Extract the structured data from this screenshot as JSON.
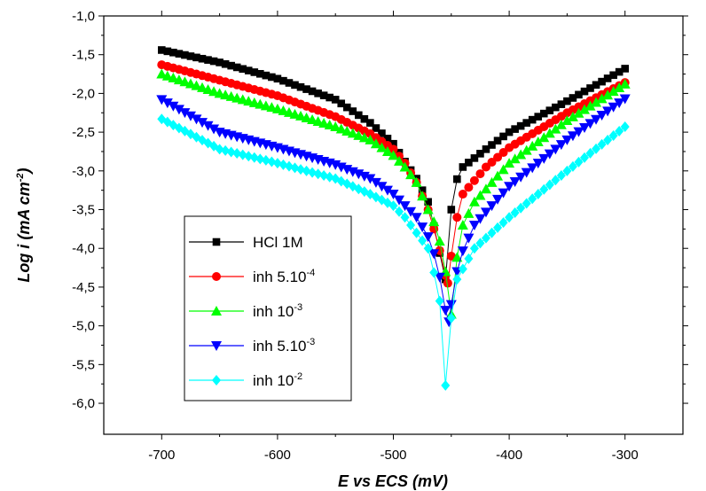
{
  "chart_data": {
    "type": "scatter",
    "xlabel": "E vs ECS (mV)",
    "ylabel": "Log i (mA cm",
    "ylabel_sup": "-2",
    "ylabel_end": ")",
    "xlim": [
      -750,
      -250
    ],
    "ylim": [
      -6.4,
      -1.0
    ],
    "xticks": [
      -700,
      -600,
      -500,
      -400,
      -300
    ],
    "yticks": [
      -1.0,
      -1.5,
      -2.0,
      -2.5,
      -3.0,
      -3.5,
      -4.0,
      -4.5,
      -5.0,
      -5.5,
      -6.0
    ],
    "xtick_labels": [
      "-700",
      "-600",
      "-500",
      "-400",
      "-300"
    ],
    "ytick_labels": [
      "-1,0",
      "-1,5",
      "-2,0",
      "-2,5",
      "-3,0",
      "-3,5",
      "-4,0",
      "-4,5",
      "-5,0",
      "-5,5",
      "-6,0"
    ],
    "legend_position": "bottom-left",
    "series": [
      {
        "name": "HCl 1M",
        "name_sup": "",
        "color": "#000000",
        "marker": "square",
        "x_start": -700,
        "x_end": -300,
        "x_step": 5,
        "ecorr": -455,
        "min_log_i": -4.4,
        "cathodic": [
          [
            -700,
            -1.44
          ],
          [
            -650,
            -1.6
          ],
          [
            -600,
            -1.81
          ],
          [
            -550,
            -2.08
          ],
          [
            -520,
            -2.38
          ],
          [
            -500,
            -2.65
          ],
          [
            -490,
            -2.88
          ],
          [
            -480,
            -3.1
          ],
          [
            -470,
            -3.4
          ],
          [
            -462,
            -3.9
          ],
          [
            -457,
            -4.3
          ],
          [
            -455,
            -4.4
          ]
        ],
        "anodic": [
          [
            -455,
            -4.4
          ],
          [
            -452,
            -3.8
          ],
          [
            -448,
            -3.2
          ],
          [
            -440,
            -2.95
          ],
          [
            -420,
            -2.72
          ],
          [
            -400,
            -2.5
          ],
          [
            -350,
            -2.1
          ],
          [
            -300,
            -1.68
          ]
        ]
      },
      {
        "name": "inh 5.10",
        "name_sup": "-4",
        "color": "#ff0000",
        "marker": "circle",
        "x_start": -700,
        "x_end": -300,
        "x_step": 5,
        "ecorr": -453,
        "min_log_i": -4.45,
        "cathodic": [
          [
            -700,
            -1.63
          ],
          [
            -650,
            -1.83
          ],
          [
            -600,
            -2.03
          ],
          [
            -550,
            -2.3
          ],
          [
            -520,
            -2.52
          ],
          [
            -500,
            -2.72
          ],
          [
            -490,
            -2.9
          ],
          [
            -480,
            -3.15
          ],
          [
            -470,
            -3.5
          ],
          [
            -462,
            -3.9
          ],
          [
            -455,
            -4.35
          ],
          [
            -453,
            -4.45
          ]
        ],
        "anodic": [
          [
            -453,
            -4.45
          ],
          [
            -450,
            -4.1
          ],
          [
            -445,
            -3.6
          ],
          [
            -440,
            -3.3
          ],
          [
            -420,
            -2.95
          ],
          [
            -400,
            -2.7
          ],
          [
            -350,
            -2.25
          ],
          [
            -300,
            -1.86
          ]
        ]
      },
      {
        "name": "inh 10",
        "name_sup": "-3",
        "color": "#00ff00",
        "marker": "triangle-up",
        "x_start": -700,
        "x_end": -300,
        "x_step": 5,
        "ecorr": -450,
        "min_log_i": -4.85,
        "cathodic": [
          [
            -700,
            -1.75
          ],
          [
            -650,
            -2.0
          ],
          [
            -600,
            -2.2
          ],
          [
            -550,
            -2.43
          ],
          [
            -520,
            -2.6
          ],
          [
            -500,
            -2.8
          ],
          [
            -490,
            -2.95
          ],
          [
            -480,
            -3.15
          ],
          [
            -470,
            -3.5
          ],
          [
            -462,
            -3.75
          ],
          [
            -455,
            -4.3
          ],
          [
            -450,
            -4.85
          ]
        ],
        "anodic": [
          [
            -450,
            -4.85
          ],
          [
            -446,
            -4.2
          ],
          [
            -440,
            -3.7
          ],
          [
            -430,
            -3.4
          ],
          [
            -400,
            -2.9
          ],
          [
            -350,
            -2.35
          ],
          [
            -300,
            -1.88
          ]
        ]
      },
      {
        "name": "inh 5.10",
        "name_sup": "-3",
        "color": "#0000ff",
        "marker": "triangle-down",
        "x_start": -700,
        "x_end": -300,
        "x_step": 5,
        "ecorr": -452,
        "min_log_i": -4.95,
        "cathodic": [
          [
            -700,
            -2.08
          ],
          [
            -650,
            -2.5
          ],
          [
            -600,
            -2.7
          ],
          [
            -550,
            -2.92
          ],
          [
            -520,
            -3.1
          ],
          [
            -500,
            -3.3
          ],
          [
            -490,
            -3.45
          ],
          [
            -480,
            -3.6
          ],
          [
            -470,
            -3.85
          ],
          [
            -462,
            -4.2
          ],
          [
            -455,
            -4.8
          ],
          [
            -452,
            -4.95
          ]
        ],
        "anodic": [
          [
            -452,
            -4.95
          ],
          [
            -448,
            -4.5
          ],
          [
            -442,
            -4.1
          ],
          [
            -430,
            -3.7
          ],
          [
            -400,
            -3.2
          ],
          [
            -350,
            -2.6
          ],
          [
            -300,
            -2.07
          ]
        ]
      },
      {
        "name": "inh 10",
        "name_sup": "-2",
        "color": "#00ffff",
        "marker": "diamond",
        "x_start": -700,
        "x_end": -300,
        "x_step": 5,
        "ecorr": -455,
        "min_log_i": -5.77,
        "cathodic": [
          [
            -700,
            -2.33
          ],
          [
            -650,
            -2.72
          ],
          [
            -600,
            -2.9
          ],
          [
            -550,
            -3.1
          ],
          [
            -520,
            -3.3
          ],
          [
            -500,
            -3.45
          ],
          [
            -490,
            -3.6
          ],
          [
            -480,
            -3.8
          ],
          [
            -470,
            -4.0
          ],
          [
            -462,
            -4.5
          ],
          [
            -457,
            -4.95
          ],
          [
            -455,
            -5.77
          ]
        ],
        "anodic": [
          [
            -455,
            -5.77
          ],
          [
            -450,
            -4.9
          ],
          [
            -445,
            -4.4
          ],
          [
            -430,
            -4.0
          ],
          [
            -400,
            -3.6
          ],
          [
            -350,
            -3.0
          ],
          [
            -300,
            -2.43
          ]
        ]
      }
    ]
  }
}
